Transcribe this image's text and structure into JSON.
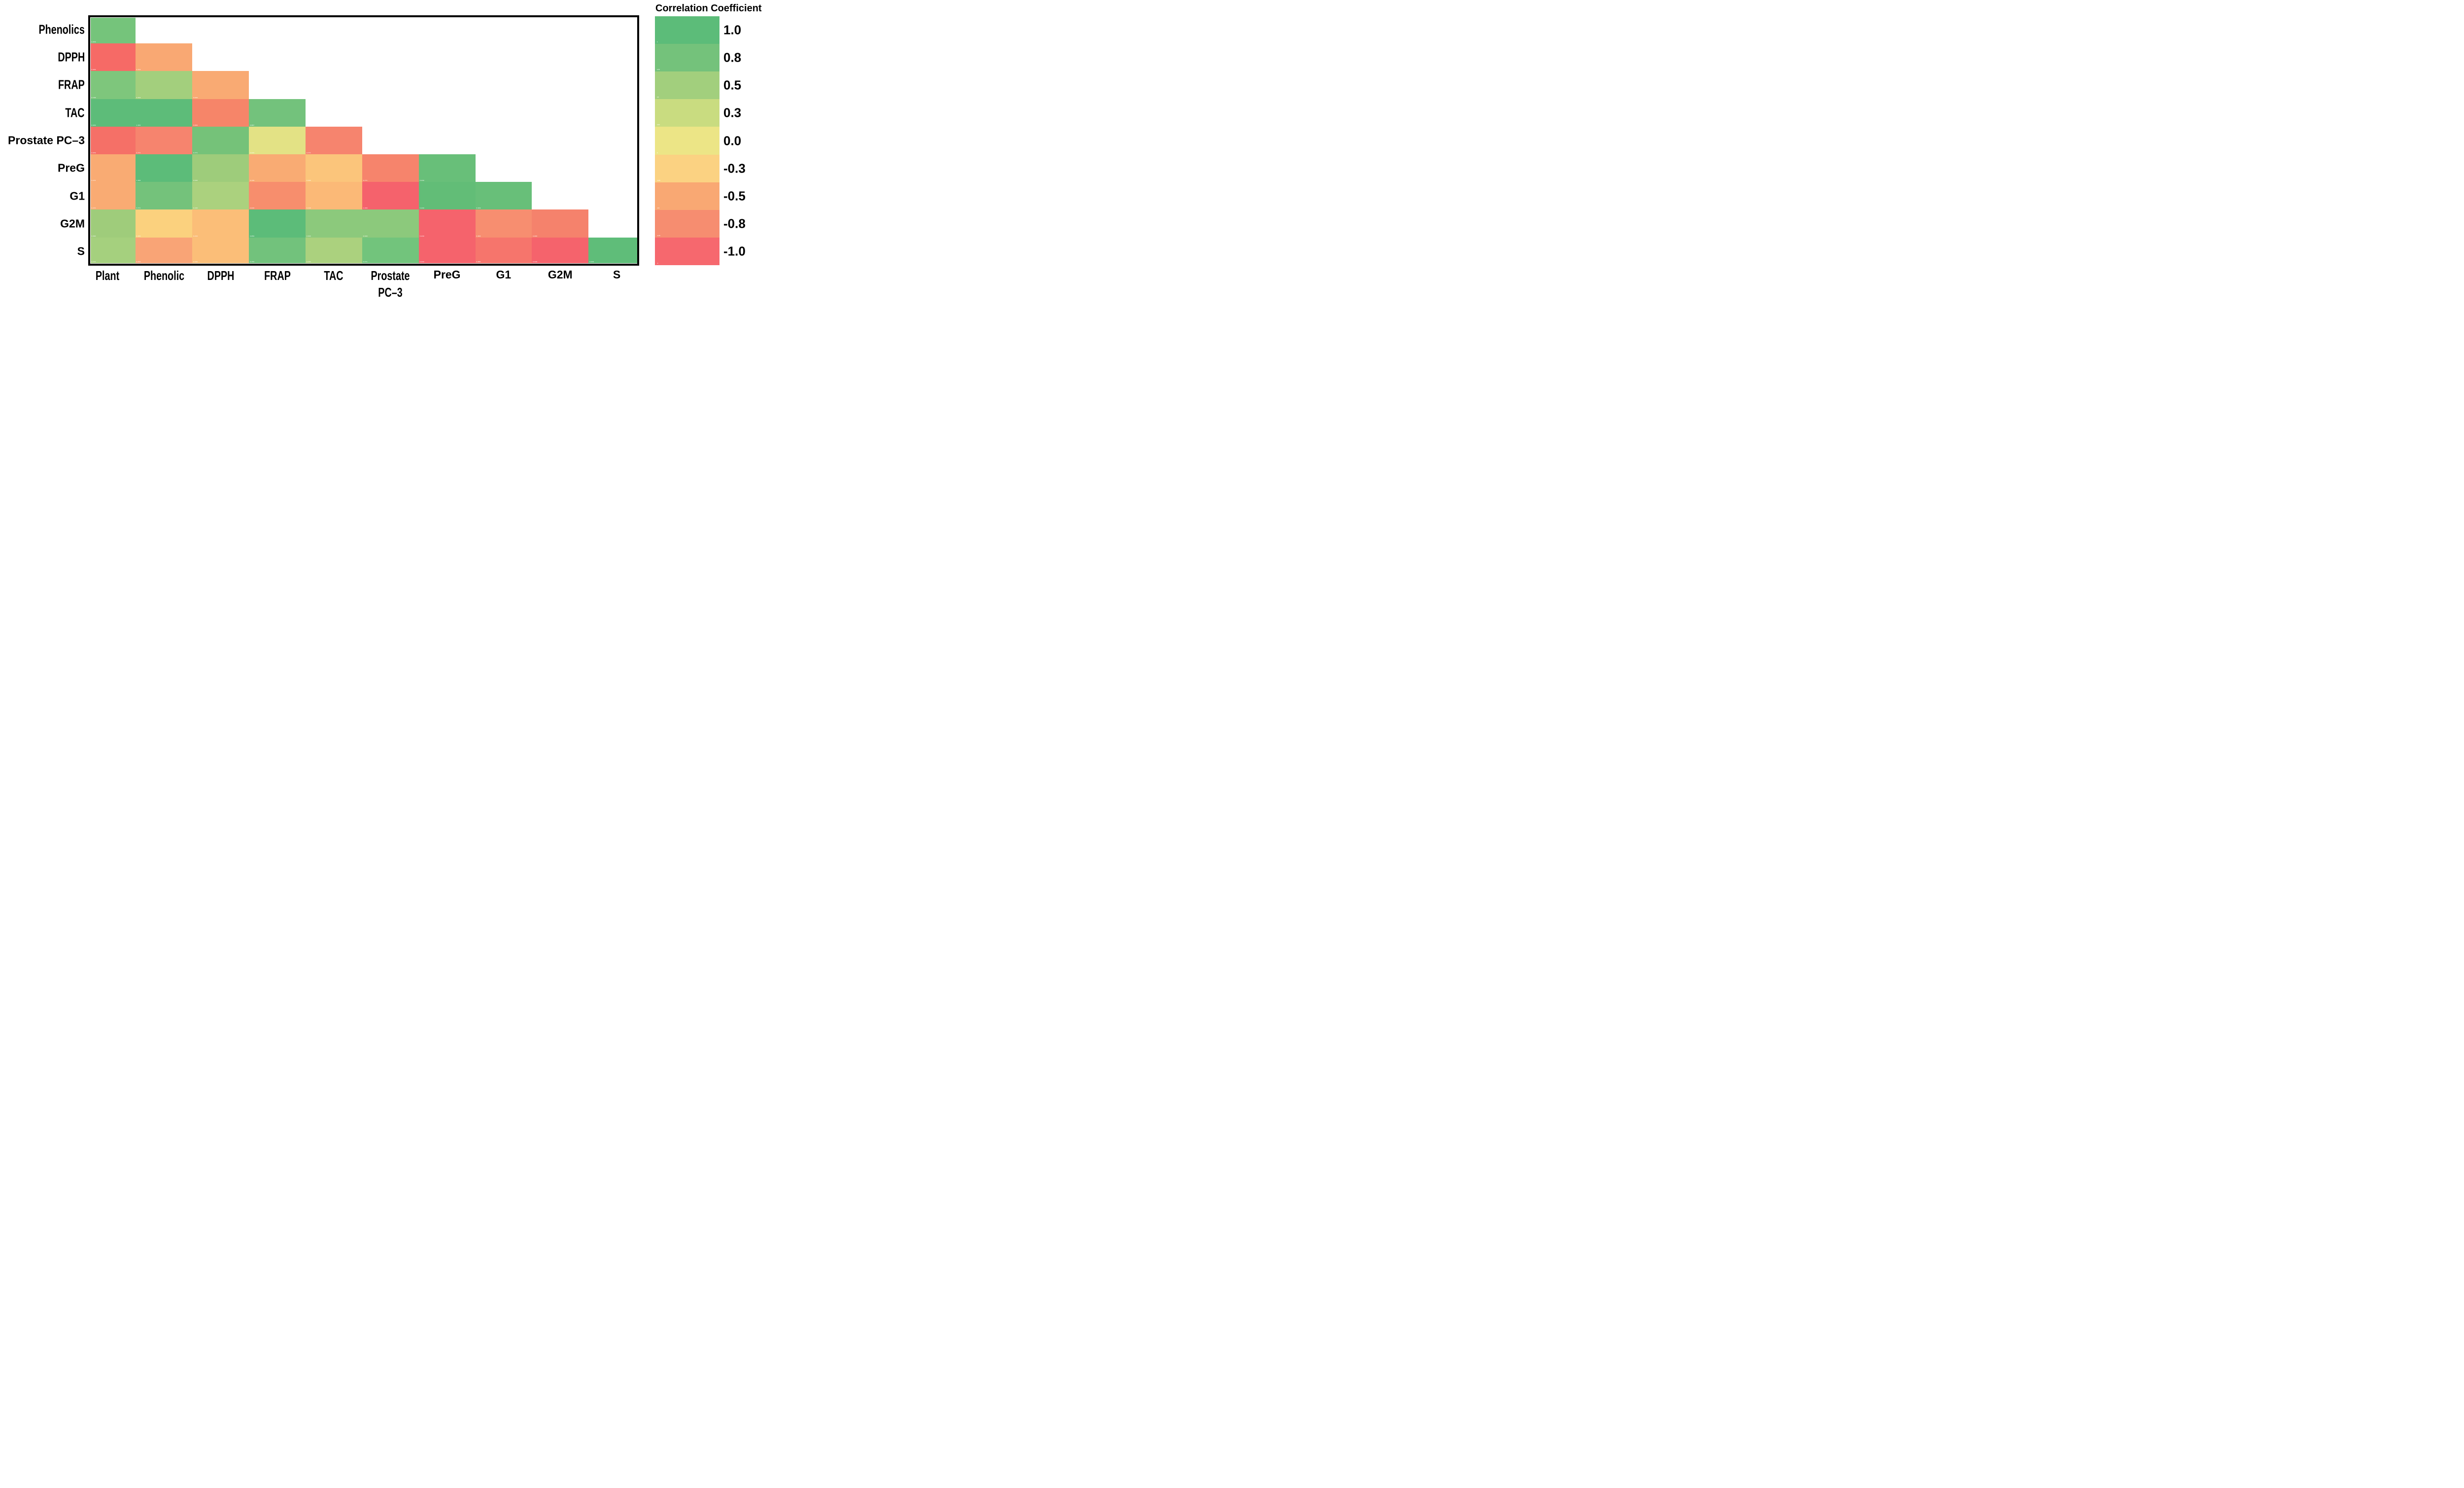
{
  "legend": {
    "title": "Correlation Coefficient",
    "tick_labels": [
      "1.0",
      "0.8",
      "0.5",
      "0.3",
      "0.0",
      "-0.3",
      "-0.5",
      "-0.8",
      "-1.0"
    ],
    "band_colors": [
      "#5cbc79",
      "#74c27b",
      "#a2cf7d",
      "#c9dc80",
      "#ece586",
      "#fbd282",
      "#f9a873",
      "#f68d70",
      "#f6686e"
    ],
    "band_inner_labels": [
      "1",
      "0.75",
      "0.5",
      "0.25",
      "0",
      "-0.25",
      "-0.5",
      "-0.75",
      "-1"
    ],
    "position": "right"
  },
  "chart_data": {
    "type": "heatmap",
    "shape": "lower-triangle",
    "x_categories": [
      {
        "label": "Plant",
        "narrow": true
      },
      {
        "label": "Phenolic",
        "narrow": true
      },
      {
        "label": "DPPH",
        "narrow": true
      },
      {
        "label": "FRAP",
        "narrow": true
      },
      {
        "label": "TAC",
        "narrow": true
      },
      {
        "label": "Prostate",
        "line2": "PC–3",
        "narrow": true
      },
      {
        "label": "PreG",
        "narrow": false
      },
      {
        "label": "G1",
        "narrow": false
      },
      {
        "label": "G2M",
        "narrow": false
      },
      {
        "label": "S",
        "narrow": false
      }
    ],
    "y_categories": [
      {
        "label": "Phenolics",
        "narrow": true
      },
      {
        "label": "DPPH",
        "narrow": true
      },
      {
        "label": "FRAP",
        "narrow": true
      },
      {
        "label": "TAC",
        "narrow": true
      },
      {
        "label": "Prostate PC–3",
        "narrow": false
      },
      {
        "label": "PreG",
        "narrow": false
      },
      {
        "label": "G1",
        "narrow": false
      },
      {
        "label": "G2M",
        "narrow": false
      },
      {
        "label": "S",
        "narrow": false
      }
    ],
    "values": [
      [
        0.878
      ],
      [
        -0.949,
        -0.543
      ],
      [
        0.738,
        0.543,
        -0.533
      ],
      [
        0.949,
        1.0,
        -0.806,
        0.887
      ],
      [
        -0.979,
        -0.771,
        0.771,
        0.022,
        -0.771
      ],
      [
        -0.474,
        1.0,
        0.53,
        -0.44,
        -0.33,
        -0.771,
        0.949
      ],
      [
        -0.474,
        0.771,
        0.44,
        -0.84,
        -0.44,
        -1.0,
        0.949,
        0.949
      ],
      [
        0.52,
        -0.22,
        -0.31,
        0.859,
        0.6,
        0.6,
        -0.949,
        -0.826,
        -0.806
      ],
      [
        0.474,
        -0.543,
        -0.44,
        0.75,
        0.45,
        0.771,
        -0.949,
        -0.88,
        -0.949,
        0.949
      ]
    ],
    "cell_colors": [
      [
        "#75c47b"
      ],
      [
        "#f66a66",
        "#f9a873"
      ],
      [
        "#7ec67c",
        "#a3cf7d",
        "#f9aa73"
      ],
      [
        "#5dbc79",
        "#5dbc79",
        "#f68569",
        "#73c27c"
      ],
      [
        "#f57067",
        "#f6846e",
        "#75c279",
        "#e3e285",
        "#f6846e"
      ],
      [
        "#f9ab73",
        "#5cbc79",
        "#9ecc7b",
        "#f9ab73",
        "#fbc57b",
        "#f6846c",
        "#68bf79"
      ],
      [
        "#f9ab73",
        "#74c27b",
        "#abd17e",
        "#f78e6d",
        "#fbb977",
        "#f5626c",
        "#62bd77",
        "#68bf79"
      ],
      [
        "#9fcc7b",
        "#fbd17e",
        "#fbbe78",
        "#5cbc79",
        "#8cc97c",
        "#8cc97c",
        "#f5636c",
        "#f78e70",
        "#f5826c"
      ],
      [
        "#a5d07e",
        "#f9a476",
        "#fbbe78",
        "#72c27c",
        "#abd17e",
        "#72c47c",
        "#f5636c",
        "#f6756c",
        "#f5636c",
        "#5fbd79"
      ]
    ],
    "value_range": [
      -1,
      1
    ],
    "grid": false
  }
}
